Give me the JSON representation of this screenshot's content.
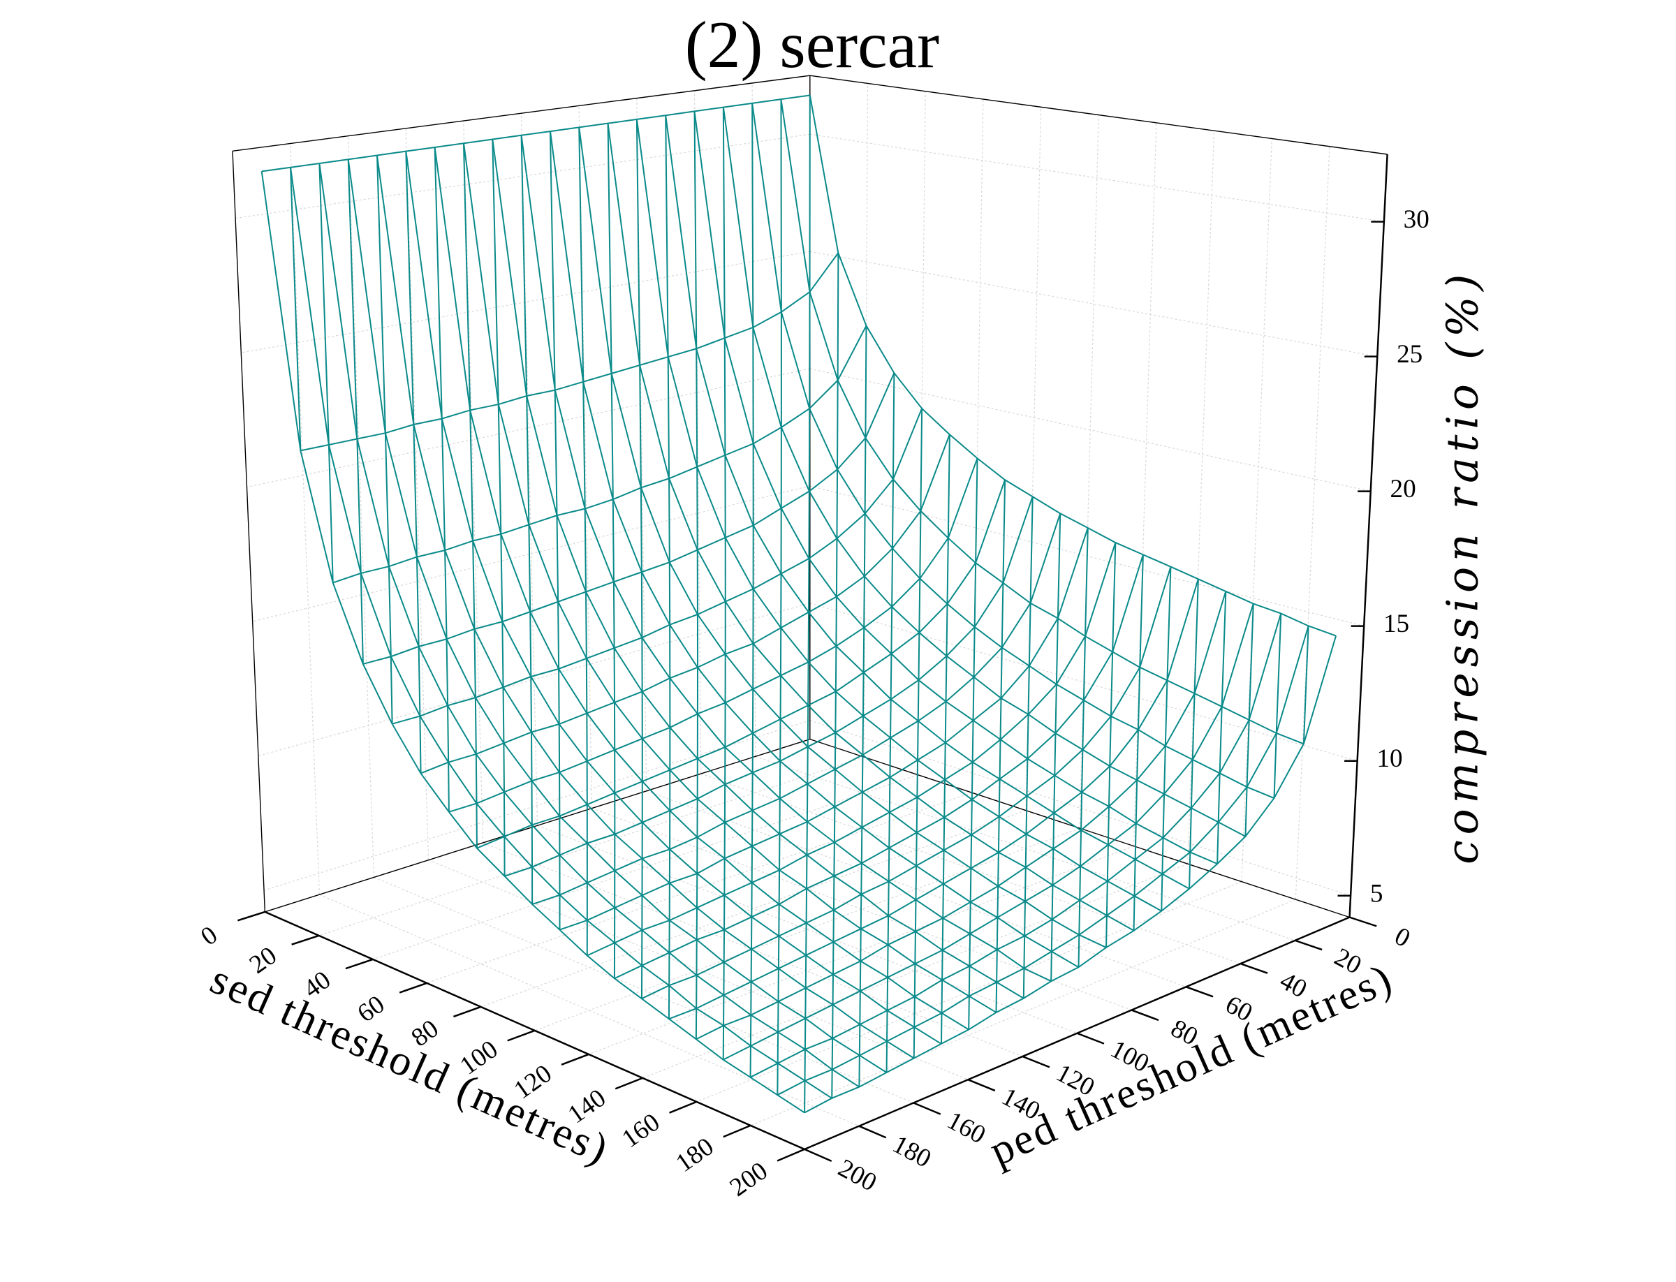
{
  "chart_data": {
    "type": "surface",
    "title": "(2) sercar",
    "xlabel": "sed threshold (metres)",
    "ylabel": "ped threshold (metres)",
    "zlabel": "compression ratio (%)",
    "color": "#0b8a8a",
    "grid": true,
    "x": [
      10,
      20,
      30,
      40,
      50,
      60,
      70,
      80,
      90,
      100,
      110,
      120,
      130,
      140,
      150,
      160,
      170,
      180,
      190,
      200
    ],
    "y": [
      10,
      20,
      30,
      40,
      50,
      60,
      70,
      80,
      90,
      100,
      110,
      120,
      130,
      140,
      150,
      160,
      170,
      180,
      190,
      200
    ],
    "z": [
      [
        32.0,
        32.0,
        32.0,
        32.0,
        32.0,
        32.0,
        32.0,
        32.0,
        32.0,
        32.0,
        32.0,
        32.0,
        32.0,
        32.0,
        32.0,
        32.0,
        32.0,
        32.0,
        32.0,
        32.0
      ],
      [
        25.6,
        24.2,
        23.6,
        23.2,
        23.0,
        22.8,
        22.7,
        22.6,
        22.5,
        22.4,
        22.3,
        22.3,
        22.2,
        22.2,
        22.1,
        22.1,
        22.0,
        22.0,
        22.0,
        22.0
      ],
      [
        22.8,
        20.8,
        19.9,
        19.4,
        19.0,
        18.8,
        18.6,
        18.4,
        18.3,
        18.1,
        18.0,
        18.0,
        17.9,
        17.8,
        17.8,
        17.7,
        17.7,
        17.6,
        17.6,
        17.5
      ],
      [
        21.1,
        18.7,
        17.7,
        17.1,
        16.7,
        16.3,
        16.1,
        15.9,
        15.7,
        15.6,
        15.5,
        15.4,
        15.3,
        15.2,
        15.1,
        15.1,
        15.0,
        15.0,
        14.9,
        14.9
      ],
      [
        19.9,
        17.3,
        16.2,
        15.5,
        15.0,
        14.7,
        14.4,
        14.2,
        14.0,
        13.9,
        13.7,
        13.6,
        13.5,
        13.4,
        13.4,
        13.3,
        13.2,
        13.2,
        13.1,
        13.1
      ],
      [
        19.1,
        16.3,
        15.1,
        14.3,
        13.8,
        13.5,
        13.2,
        12.9,
        12.8,
        12.6,
        12.5,
        12.3,
        12.2,
        12.1,
        12.0,
        12.0,
        11.9,
        11.8,
        11.8,
        11.7
      ],
      [
        18.4,
        15.5,
        14.2,
        13.4,
        12.9,
        12.5,
        12.2,
        12.0,
        11.8,
        11.6,
        11.5,
        11.3,
        11.2,
        11.1,
        11.0,
        10.9,
        10.9,
        10.8,
        10.7,
        10.7
      ],
      [
        17.8,
        14.8,
        13.5,
        12.7,
        12.2,
        11.8,
        11.4,
        11.2,
        11.0,
        10.8,
        10.6,
        10.5,
        10.4,
        10.3,
        10.2,
        10.1,
        10.0,
        10.0,
        9.9,
        9.8
      ],
      [
        17.4,
        14.3,
        12.9,
        12.1,
        11.5,
        11.1,
        10.8,
        10.5,
        10.3,
        10.1,
        10.0,
        9.9,
        9.7,
        9.6,
        9.5,
        9.4,
        9.4,
        9.3,
        9.2,
        9.2
      ],
      [
        17.0,
        13.8,
        12.4,
        11.6,
        11.0,
        10.6,
        10.3,
        10.0,
        9.8,
        9.6,
        9.4,
        9.3,
        9.2,
        9.0,
        8.9,
        8.9,
        8.8,
        8.7,
        8.6,
        8.6
      ],
      [
        16.7,
        13.5,
        12.0,
        11.1,
        10.6,
        10.1,
        9.8,
        9.5,
        9.3,
        9.1,
        8.9,
        8.8,
        8.7,
        8.6,
        8.4,
        8.4,
        8.3,
        8.2,
        8.1,
        8.1
      ],
      [
        16.4,
        13.1,
        11.6,
        10.8,
        10.2,
        9.7,
        9.4,
        9.1,
        8.9,
        8.7,
        8.5,
        8.4,
        8.2,
        8.1,
        8.0,
        7.9,
        7.8,
        7.8,
        7.7,
        7.6
      ],
      [
        16.2,
        12.8,
        11.3,
        10.4,
        9.8,
        9.4,
        9.0,
        8.7,
        8.5,
        8.3,
        8.1,
        8.0,
        7.9,
        7.7,
        7.6,
        7.5,
        7.5,
        7.4,
        7.3,
        7.2
      ],
      [
        16.0,
        12.5,
        11.0,
        10.1,
        9.5,
        9.1,
        8.7,
        8.4,
        8.2,
        8.0,
        7.8,
        7.7,
        7.5,
        7.4,
        7.3,
        7.2,
        7.1,
        7.0,
        7.0,
        6.9
      ],
      [
        15.8,
        12.3,
        10.8,
        9.8,
        9.2,
        8.8,
        8.4,
        8.1,
        7.9,
        7.7,
        7.5,
        7.3,
        7.2,
        7.1,
        7.0,
        6.9,
        6.8,
        6.7,
        6.6,
        6.6
      ],
      [
        15.6,
        12.1,
        10.5,
        9.6,
        9.0,
        8.5,
        8.2,
        7.9,
        7.6,
        7.4,
        7.2,
        7.1,
        7.0,
        6.8,
        6.7,
        6.6,
        6.5,
        6.4,
        6.4,
        6.3
      ],
      [
        15.4,
        11.9,
        10.3,
        9.4,
        8.7,
        8.3,
        7.9,
        7.6,
        7.4,
        7.2,
        7.0,
        6.8,
        6.7,
        6.6,
        6.5,
        6.4,
        6.3,
        6.2,
        6.1,
        6.0
      ],
      [
        15.3,
        11.7,
        10.1,
        9.2,
        8.5,
        8.1,
        7.7,
        7.4,
        7.1,
        6.9,
        6.8,
        6.6,
        6.5,
        6.3,
        6.2,
        6.1,
        6.0,
        6.0,
        5.9,
        5.8
      ],
      [
        15.1,
        11.5,
        9.9,
        9.0,
        8.3,
        7.9,
        7.5,
        7.2,
        6.9,
        6.7,
        6.5,
        6.4,
        6.3,
        6.1,
        6.0,
        5.9,
        5.8,
        5.7,
        5.7,
        5.6
      ],
      [
        15.0,
        11.4,
        9.8,
        8.8,
        8.2,
        7.7,
        7.3,
        7.0,
        6.8,
        6.5,
        6.4,
        6.2,
        6.1,
        5.9,
        5.8,
        5.7,
        5.6,
        5.5,
        5.5,
        5.4
      ]
    ],
    "xlim": [
      0,
      200
    ],
    "ylim": [
      0,
      200
    ],
    "zlim": [
      4.2,
      32.5
    ],
    "xticks": [
      0,
      20,
      40,
      60,
      80,
      100,
      120,
      140,
      160,
      180,
      200
    ],
    "yticks": [
      0,
      20,
      40,
      60,
      80,
      100,
      120,
      140,
      160,
      180,
      200
    ],
    "zticks": [
      5,
      10,
      15,
      20,
      25,
      30
    ]
  }
}
